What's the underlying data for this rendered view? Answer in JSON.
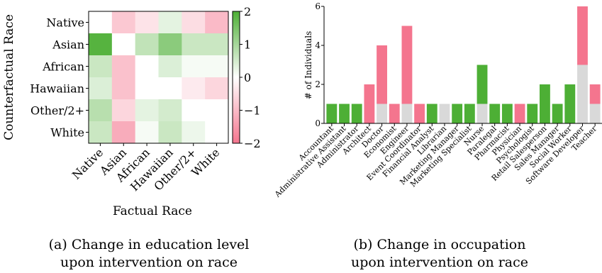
{
  "colors": {
    "positive": "#4daf35",
    "negative": "#f4758e",
    "neutral": "#d9d9d9",
    "axis": "#000000"
  },
  "chart_data": [
    {
      "type": "heatmap",
      "ylabel": "Counterfactual Race",
      "xlabel": "Factual Race",
      "x_categories": [
        "Native",
        "Asian",
        "African",
        "Hawaiian",
        "Other/2+",
        "White"
      ],
      "y_categories": [
        "Native",
        "Asian",
        "African",
        "Hawaiian",
        "Other/2+",
        "White"
      ],
      "values": [
        [
          0.0,
          -0.8,
          -0.4,
          0.3,
          -0.5,
          -1.0
        ],
        [
          1.9,
          0.0,
          0.7,
          1.3,
          0.6,
          0.6
        ],
        [
          0.6,
          -0.9,
          0.0,
          0.4,
          0.1,
          0.1
        ],
        [
          0.4,
          -0.9,
          0.0,
          0.0,
          -0.3,
          -0.6
        ],
        [
          0.8,
          -0.6,
          0.3,
          0.5,
          0.0,
          0.0
        ],
        [
          0.6,
          -1.2,
          0.1,
          0.6,
          0.2,
          0.0
        ]
      ],
      "colorbar": {
        "min": -2,
        "max": 2,
        "ticks": [
          2,
          1,
          0,
          -1,
          -2
        ],
        "tick_labels": [
          "2",
          "1",
          "0",
          "−1",
          "−2"
        ]
      }
    },
    {
      "type": "bar",
      "stacked": true,
      "ylabel": "# of Individuals",
      "ylim": [
        0,
        6
      ],
      "yticks": [
        0,
        2,
        4,
        6
      ],
      "categories": [
        "Accountant",
        "Administrative Assistant",
        "Administrator",
        "Architect",
        "Doctor",
        "Economist",
        "Engineer",
        "Event Coordinator",
        "Financial Analyst",
        "Librarian",
        "Marketing Manager",
        "Marketing Specialist",
        "Nurse",
        "Paralegal",
        "Pharmacist",
        "Physician",
        "Psychologist",
        "Retail Salesperson",
        "Sales Manager",
        "Social Worker",
        "Software Developer",
        "Teacher"
      ],
      "series": [
        {
          "color": "#d9d9d9",
          "values": [
            0,
            0,
            0,
            0,
            1,
            0,
            1,
            0,
            0,
            1,
            0,
            0,
            1,
            0,
            0,
            0,
            0,
            0,
            0,
            0,
            3,
            1
          ]
        },
        {
          "color": "#4daf35",
          "values": [
            1,
            1,
            1,
            0,
            0,
            0,
            0,
            0,
            1,
            0,
            1,
            1,
            2,
            1,
            1,
            0,
            1,
            2,
            1,
            2,
            0,
            0
          ]
        },
        {
          "color": "#f4758e",
          "values": [
            0,
            0,
            0,
            2,
            3,
            1,
            4,
            1,
            0,
            0,
            0,
            0,
            0,
            0,
            0,
            1,
            0,
            0,
            0,
            0,
            3,
            1
          ]
        }
      ]
    }
  ],
  "captions": {
    "a_line1": "(a) Change in education level",
    "a_line2": "upon intervention on race",
    "b_line1": "(b) Change in occupation",
    "b_line2": "upon intervention on race"
  }
}
